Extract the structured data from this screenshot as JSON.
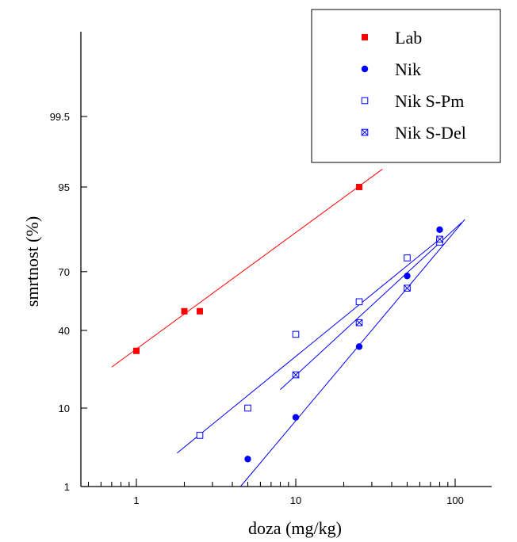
{
  "chart_data": {
    "type": "scatter",
    "title": "",
    "xlabel": "doza (mg/kg)",
    "ylabel": "smrtnost (%)",
    "x_scale": "log",
    "y_scale": "probit",
    "xlim": [
      0.5,
      150
    ],
    "ylim": [
      1,
      99.9
    ],
    "x_ticks": [
      1,
      10,
      100
    ],
    "x_tick_labels": [
      "1",
      "10",
      "100"
    ],
    "y_ticks": [
      1,
      10,
      40,
      70,
      95,
      99.5
    ],
    "y_tick_labels": [
      "1",
      "10",
      "40",
      "70",
      "95",
      "99.5"
    ],
    "grid": false,
    "legend_position": "top-right",
    "series": [
      {
        "name": "Lab",
        "color": "#ff0000",
        "marker": "filled-square",
        "points": [
          [
            1,
            30
          ],
          [
            2,
            50
          ],
          [
            2.5,
            50
          ],
          [
            25,
            95
          ]
        ],
        "fit_line": [
          [
            0.7,
            23
          ],
          [
            35,
            97
          ]
        ]
      },
      {
        "name": "Nik",
        "color": "#0000ff",
        "marker": "filled-circle",
        "points": [
          [
            5,
            2.5
          ],
          [
            10,
            8
          ],
          [
            25,
            32
          ],
          [
            50,
            68
          ],
          [
            80,
            86
          ]
        ],
        "fit_line": [
          [
            4.5,
            1
          ],
          [
            115,
            88.8
          ]
        ]
      },
      {
        "name": "Nik S-Pm",
        "color": "#0000ff",
        "marker": "open-square",
        "points": [
          [
            2.5,
            5
          ],
          [
            5,
            10
          ],
          [
            10,
            38
          ],
          [
            25,
            55
          ],
          [
            50,
            76
          ],
          [
            80,
            82
          ]
        ],
        "fit_line": [
          [
            1.8,
            3
          ],
          [
            80,
            83
          ]
        ]
      },
      {
        "name": "Nik S-Del",
        "color": "#0000ff",
        "marker": "crossed-square",
        "points": [
          [
            10,
            20
          ],
          [
            25,
            44
          ],
          [
            50,
            62
          ],
          [
            80,
            83
          ]
        ],
        "fit_line": [
          [
            8,
            15
          ],
          [
            110,
            88
          ]
        ]
      }
    ]
  }
}
